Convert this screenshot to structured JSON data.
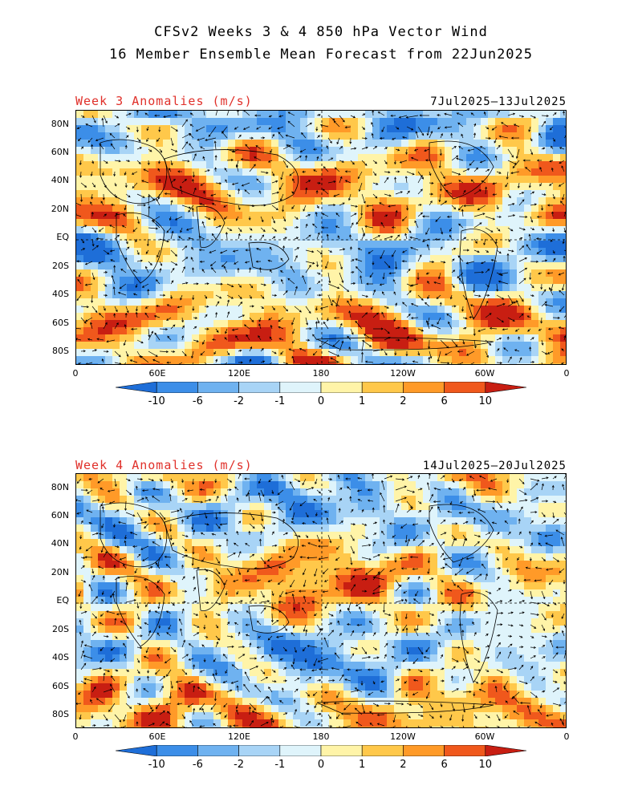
{
  "title": {
    "line1": "CFSv2 Weeks 3 & 4 850 hPa Vector Wind",
    "line2": "16 Member Ensemble Mean Forecast from 22Jun2025"
  },
  "panels": [
    {
      "label": "Week 3 Anomalies (m/s)",
      "dates": "7Jul2025—13Jul2025",
      "seed": 17
    },
    {
      "label": "Week 4 Anomalies (m/s)",
      "dates": "14Jul2025—20Jul2025",
      "seed": 91
    }
  ],
  "lat_ticks": [
    "80N",
    "60N",
    "40N",
    "20N",
    "EQ",
    "20S",
    "40S",
    "60S",
    "80S"
  ],
  "lon_ticks": [
    "0",
    "60E",
    "120E",
    "180",
    "120W",
    "60W",
    "0"
  ],
  "colorbar": {
    "labels": [
      "-10",
      "-6",
      "-2",
      "-1",
      "0",
      "1",
      "2",
      "6",
      "10"
    ],
    "colors": [
      "#1e6ed8",
      "#3c8ee8",
      "#6fb2f0",
      "#a8d4f6",
      "#dff4fb",
      "#fff4a8",
      "#ffc84a",
      "#ff9a28",
      "#f0581c",
      "#c81e12"
    ]
  },
  "colors": {
    "title_red": "#e0302a"
  }
}
